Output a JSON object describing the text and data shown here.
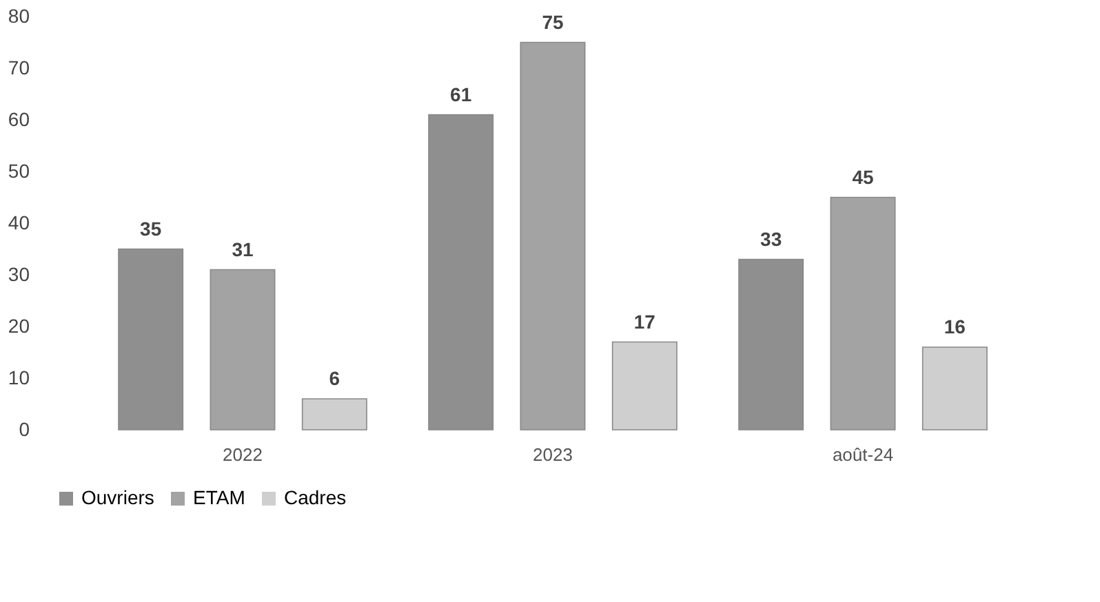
{
  "chart_data": {
    "type": "bar",
    "categories": [
      "2022",
      "2023",
      "août-24"
    ],
    "series": [
      {
        "name": "Ouvriers",
        "color": "#8f8f8f",
        "values": [
          35,
          61,
          33
        ]
      },
      {
        "name": "ETAM",
        "color": "#a3a3a3",
        "values": [
          31,
          75,
          45
        ]
      },
      {
        "name": "Cadres",
        "color": "#cfcfcf",
        "values": [
          6,
          17,
          16
        ]
      }
    ],
    "ylim": [
      0,
      80
    ],
    "yticks": [
      0,
      10,
      20,
      30,
      40,
      50,
      60,
      70,
      80
    ],
    "data_labels": true,
    "grid": false,
    "legend": "bottom"
  }
}
